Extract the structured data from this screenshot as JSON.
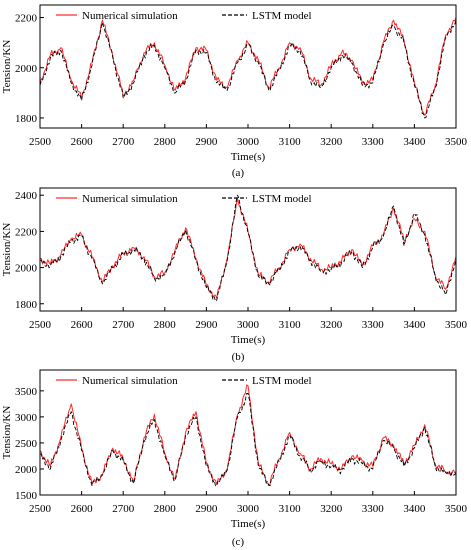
{
  "legend": {
    "sim": "Numerical simulation",
    "lstm": "LSTM model"
  },
  "colors": {
    "sim": "#ff2a2a",
    "lstm": "#000000"
  },
  "chart_data": [
    {
      "type": "line",
      "panel_label": "(a)",
      "xlabel": "Time(s)",
      "ylabel": "Tension/KN",
      "xlim": [
        2500,
        3500
      ],
      "ylim": [
        1760,
        2250
      ],
      "xticks": [
        2500,
        2600,
        2700,
        2800,
        2900,
        3000,
        3100,
        3200,
        3300,
        3400,
        3500
      ],
      "yticks": [
        1800,
        2000,
        2200
      ],
      "legend_position": "top-left",
      "x": [
        2500,
        2525,
        2550,
        2575,
        2600,
        2625,
        2650,
        2675,
        2700,
        2725,
        2750,
        2775,
        2800,
        2825,
        2850,
        2875,
        2900,
        2925,
        2950,
        2975,
        3000,
        3025,
        3050,
        3075,
        3100,
        3125,
        3150,
        3175,
        3200,
        3225,
        3250,
        3275,
        3300,
        3325,
        3350,
        3375,
        3400,
        3425,
        3450,
        3475,
        3500
      ],
      "series": [
        {
          "name": "Numerical simulation",
          "values": [
            1940,
            2050,
            2080,
            1950,
            1880,
            2020,
            2190,
            2050,
            1890,
            1950,
            2060,
            2100,
            2010,
            1910,
            1960,
            2080,
            2070,
            1950,
            1920,
            2030,
            2100,
            2030,
            1920,
            2000,
            2100,
            2080,
            1960,
            1930,
            2010,
            2060,
            2030,
            1940,
            1950,
            2100,
            2190,
            2110,
            1940,
            1810,
            1930,
            2130,
            2200
          ]
        },
        {
          "name": "LSTM model",
          "values": [
            1930,
            2040,
            2070,
            1940,
            1870,
            2010,
            2180,
            2040,
            1880,
            1940,
            2050,
            2090,
            2000,
            1900,
            1950,
            2070,
            2060,
            1940,
            1910,
            2020,
            2090,
            2020,
            1910,
            1990,
            2090,
            2070,
            1950,
            1920,
            2000,
            2050,
            2020,
            1930,
            1940,
            2090,
            2170,
            2100,
            1930,
            1800,
            1920,
            2120,
            2190
          ]
        }
      ]
    },
    {
      "type": "line",
      "panel_label": "(b)",
      "xlabel": "Time(s)",
      "ylabel": "Tension/KN",
      "xlim": [
        2500,
        3500
      ],
      "ylim": [
        1760,
        2440
      ],
      "xticks": [
        2500,
        2600,
        2700,
        2800,
        2900,
        3000,
        3100,
        3200,
        3300,
        3400,
        3500
      ],
      "yticks": [
        1800,
        2000,
        2200,
        2400
      ],
      "legend_position": "top-left",
      "x": [
        2500,
        2525,
        2550,
        2575,
        2600,
        2625,
        2650,
        2675,
        2700,
        2725,
        2750,
        2775,
        2800,
        2825,
        2850,
        2875,
        2900,
        2925,
        2950,
        2975,
        3000,
        3025,
        3050,
        3075,
        3100,
        3125,
        3150,
        3175,
        3200,
        3225,
        3250,
        3275,
        3300,
        3325,
        3350,
        3375,
        3400,
        3425,
        3450,
        3475,
        3500
      ],
      "series": [
        {
          "name": "Numerical simulation",
          "values": [
            2050,
            2020,
            2070,
            2160,
            2180,
            2060,
            1920,
            2010,
            2080,
            2110,
            2060,
            1950,
            1970,
            2100,
            2220,
            2050,
            1900,
            1830,
            2050,
            2380,
            2200,
            1960,
            1920,
            2000,
            2100,
            2130,
            2050,
            1990,
            2000,
            2040,
            2100,
            2010,
            2120,
            2180,
            2330,
            2150,
            2270,
            2200,
            1960,
            1880,
            2060
          ]
        },
        {
          "name": "LSTM model",
          "values": [
            2040,
            2010,
            2060,
            2150,
            2170,
            2050,
            1910,
            2000,
            2070,
            2100,
            2050,
            1940,
            1960,
            2090,
            2210,
            2040,
            1890,
            1820,
            2040,
            2400,
            2190,
            1950,
            1910,
            1990,
            2090,
            2120,
            2040,
            1980,
            1990,
            2030,
            2090,
            2000,
            2110,
            2170,
            2340,
            2120,
            2300,
            2180,
            1950,
            1850,
            2050
          ]
        }
      ]
    },
    {
      "type": "line",
      "panel_label": "(c)",
      "xlabel": "Time(s)",
      "ylabel": "Tension/KN",
      "xlim": [
        2500,
        3500
      ],
      "ylim": [
        1500,
        3900
      ],
      "xticks": [
        2500,
        2600,
        2700,
        2800,
        2900,
        3000,
        3100,
        3200,
        3300,
        3400,
        3500
      ],
      "yticks": [
        1500,
        2000,
        2500,
        3000,
        3500
      ],
      "legend_position": "top-left",
      "x": [
        2500,
        2525,
        2550,
        2575,
        2600,
        2625,
        2650,
        2675,
        2700,
        2725,
        2750,
        2775,
        2800,
        2825,
        2850,
        2875,
        2900,
        2925,
        2950,
        2975,
        3000,
        3025,
        3050,
        3075,
        3100,
        3125,
        3150,
        3175,
        3200,
        3225,
        3250,
        3275,
        3300,
        3325,
        3350,
        3375,
        3400,
        3425,
        3450,
        3475,
        3500
      ],
      "series": [
        {
          "name": "Numerical simulation",
          "values": [
            2350,
            2050,
            2600,
            3250,
            2400,
            1700,
            1900,
            2400,
            2200,
            1750,
            2600,
            3050,
            2300,
            1800,
            2700,
            3100,
            2100,
            1700,
            2000,
            3050,
            3600,
            2100,
            1700,
            2200,
            2700,
            2300,
            2000,
            2200,
            2100,
            2000,
            2250,
            2150,
            2050,
            2600,
            2450,
            2100,
            2450,
            2850,
            2100,
            1950,
            1950
          ]
        },
        {
          "name": "LSTM model",
          "values": [
            2300,
            2000,
            2550,
            3100,
            2350,
            1680,
            1880,
            2350,
            2150,
            1720,
            2550,
            2950,
            2250,
            1780,
            2650,
            3000,
            2050,
            1680,
            1980,
            3000,
            3450,
            2050,
            1680,
            2150,
            2650,
            2250,
            1980,
            2150,
            2050,
            1980,
            2200,
            2100,
            2000,
            2550,
            2400,
            2050,
            2400,
            2800,
            2050,
            1930,
            1930
          ]
        }
      ]
    }
  ]
}
